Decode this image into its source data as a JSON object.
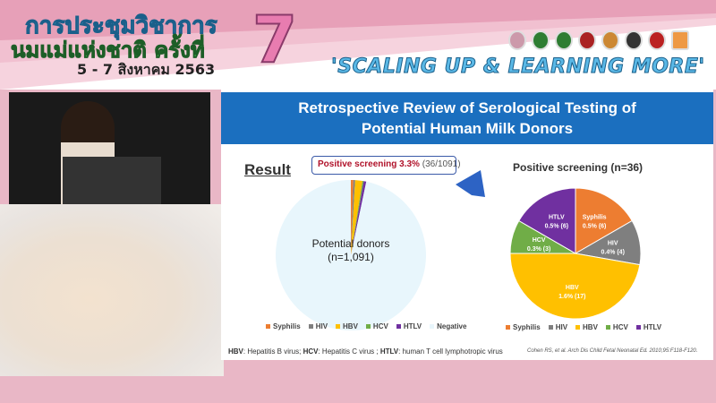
{
  "banner": {
    "thai_line1": "การประชุมวิชาการ",
    "thai_line2": "นมแม่แห่งชาติ ครั้งที่",
    "number": "7",
    "dates": "5 - 7 สิงหาคม 2563",
    "slogan": "'SCALING UP & LEARNING MORE'"
  },
  "slide": {
    "title_line1": "Retrospective Review of Serological Testing of",
    "title_line2": "Potential Human Milk Donors",
    "result_label": "Result",
    "callout_bold": "Positive screening 3.3%",
    "callout_rest": "(36/1091)",
    "footnote": {
      "hbv_abbr": "HBV",
      "hbv": ": Hepatitis B virus; ",
      "hcv_abbr": "HCV",
      "hcv": ": Hepatitis C virus ; ",
      "htlv_abbr": "HTLV",
      "htlv": ": human T cell lymphotropic virus"
    },
    "citation": "Cohen RS, et al. Arch Dis Child Fetal Neonatal Ed. 2010;95:F118-F120."
  },
  "chart_data": [
    {
      "type": "pie",
      "center_label_line1": "Potential donors",
      "center_label_line2": "(n=1,091)",
      "categories": [
        "Syphilis",
        "HIV",
        "HBV",
        "HCV",
        "HTLV",
        "Negative"
      ],
      "values": [
        6,
        4,
        17,
        3,
        6,
        1055
      ],
      "colors": [
        "#ed7d31",
        "#7f7f7f",
        "#ffc000",
        "#70ad47",
        "#7030a0",
        "#e8f6fc"
      ],
      "legend": "bottom"
    },
    {
      "type": "pie",
      "title": "Positive screening (n=36)",
      "categories": [
        "Syphilis",
        "HIV",
        "HBV",
        "HCV",
        "HTLV"
      ],
      "values": [
        6,
        4,
        17,
        3,
        6
      ],
      "data_labels": [
        "0.5% (6)",
        "0.4% (4)",
        "1.6% (17)",
        "0.3% (3)",
        "0.5% (6)"
      ],
      "colors": [
        "#ed7d31",
        "#7f7f7f",
        "#ffc000",
        "#70ad47",
        "#7030a0"
      ],
      "legend": "bottom"
    }
  ]
}
